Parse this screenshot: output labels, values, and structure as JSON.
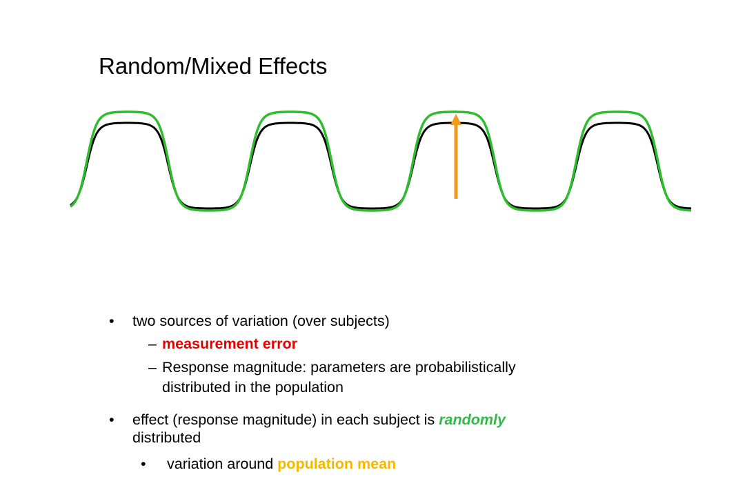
{
  "title": "Random/Mixed Effects",
  "colors": {
    "mean_curve": "#000000",
    "subject_curve": "#2dbd2d",
    "arrow": "#f39a1e",
    "measurement_error": "#e60000",
    "randomly": "#33b84a",
    "population_mean": "#f5b800"
  },
  "bullets": {
    "b1": {
      "marker": "•",
      "text": "two sources of variation (over subjects)"
    },
    "b1_sub1": {
      "marker": "–",
      "text": "measurement error"
    },
    "b1_sub2": {
      "marker": "–",
      "line1": "Response magnitude: parameters are probabilistically",
      "line2": "distributed in the population"
    },
    "b2": {
      "marker": "•",
      "text_before": "effect (response magnitude) in each subject is ",
      "emphasis": "randomly",
      "line2": "distributed"
    },
    "b2_sub1": {
      "marker": "•",
      "text_before": "variation around ",
      "emphasis": "population mean"
    }
  }
}
